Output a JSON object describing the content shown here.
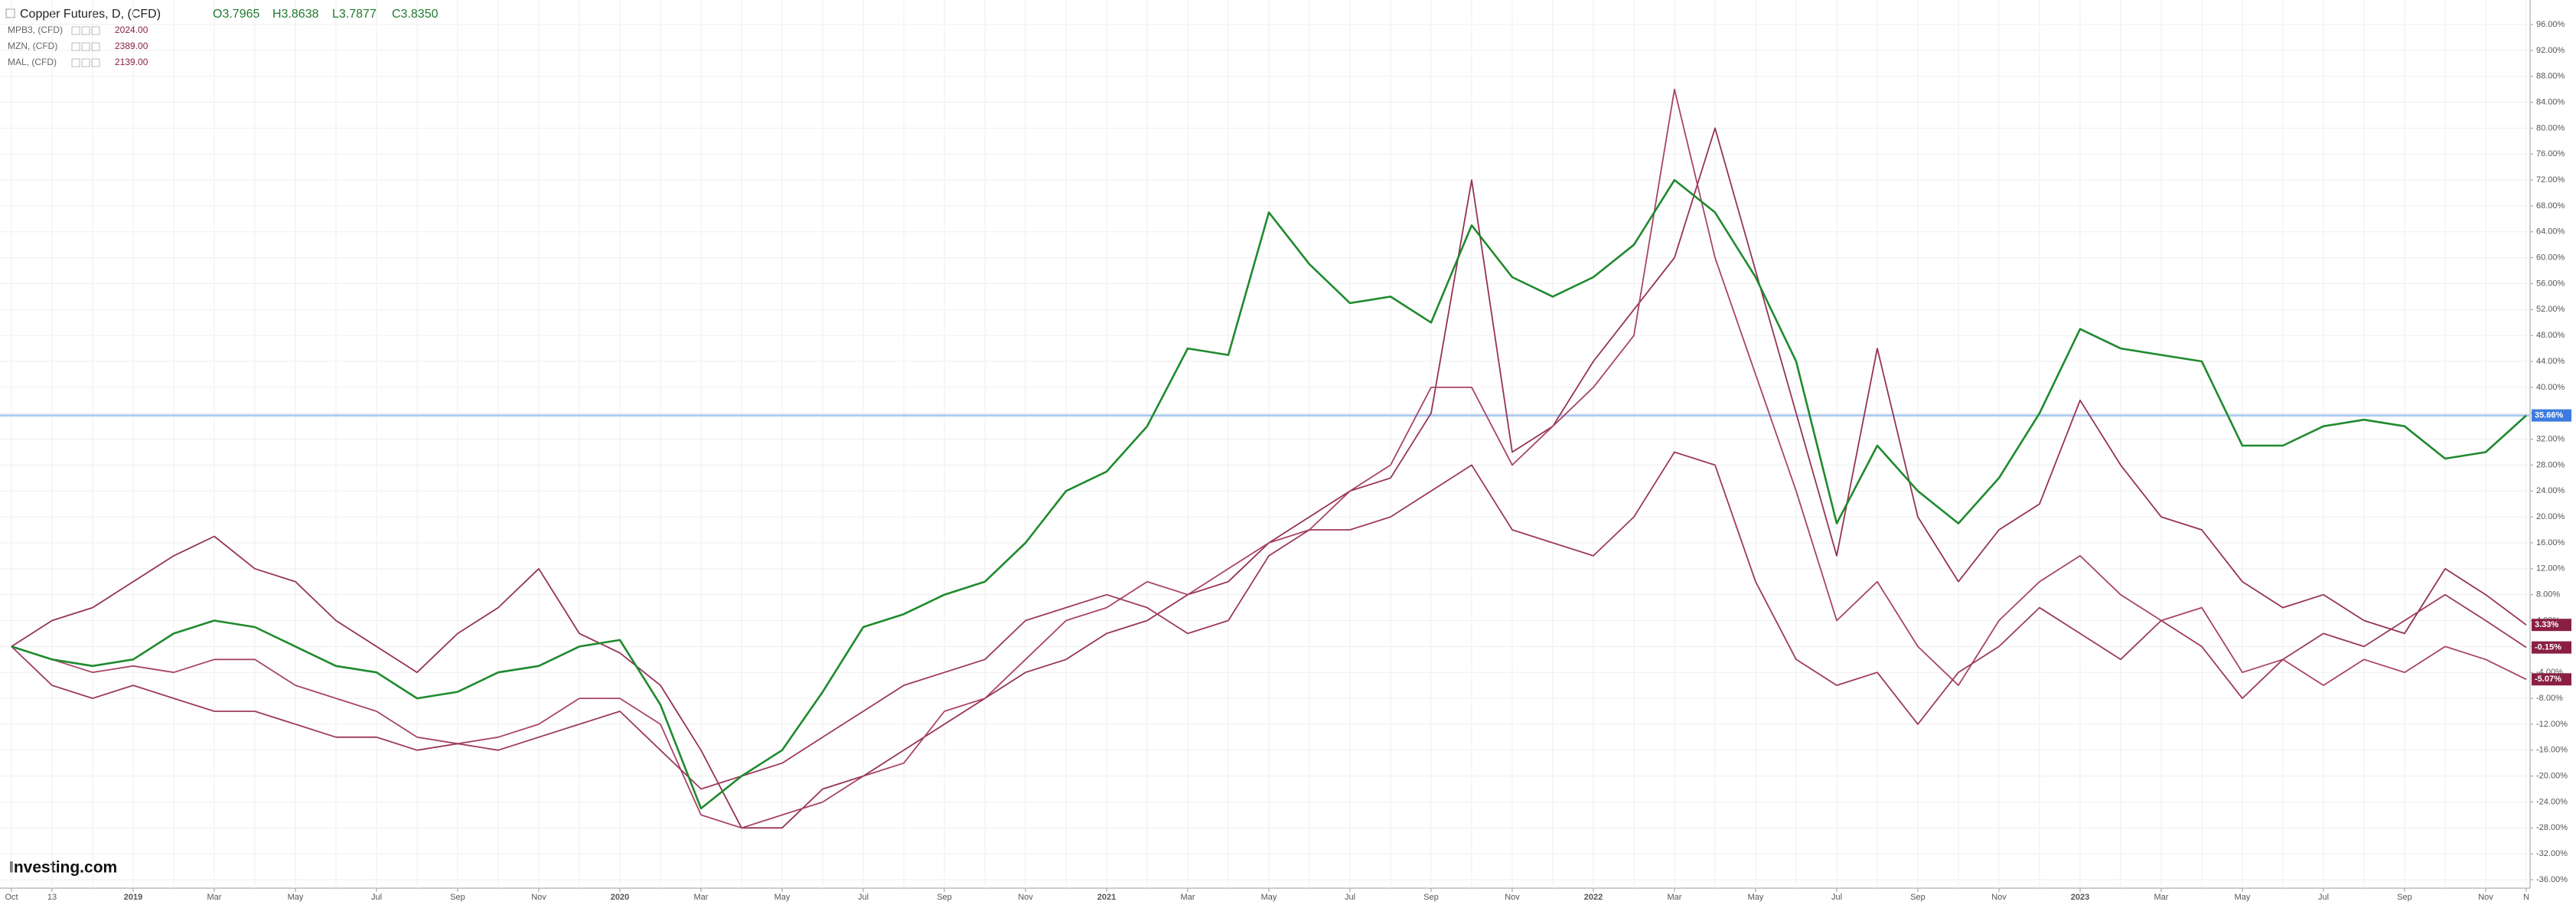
{
  "chart_data": {
    "type": "line",
    "title": "Copper Futures, D, (CFD)",
    "ohlc": [
      "O3.7965",
      "H3.8638",
      "L3.7877",
      "C3.8350"
    ],
    "logo": "Investing.com",
    "categories": [
      "Oct",
      "13",
      null,
      "2019",
      null,
      "Mar",
      null,
      "May",
      null,
      "Jul",
      null,
      "Sep",
      null,
      "Nov",
      null,
      "2020",
      null,
      "Mar",
      null,
      "May",
      null,
      "Jul",
      null,
      "Sep",
      null,
      "Nov",
      null,
      "2021",
      null,
      "Mar",
      null,
      "May",
      null,
      "Jul",
      null,
      "Sep",
      null,
      "Nov",
      null,
      "2022",
      null,
      "Mar",
      null,
      "May",
      null,
      "Jul",
      null,
      "Sep",
      null,
      "Nov",
      null,
      "2023",
      null,
      "Mar",
      null,
      "May",
      null,
      "Jul",
      null,
      "Sep",
      null,
      "Nov",
      "N"
    ],
    "series": [
      {
        "name": "Copper Futures",
        "color": "#1f8a2e",
        "in_legend": false,
        "values": [
          0,
          -2,
          -3,
          -2,
          2,
          4,
          3,
          0,
          -3,
          -4,
          -8,
          -7,
          -4,
          -3,
          0,
          1,
          -9,
          -25,
          -20,
          -16,
          -7,
          3,
          5,
          8,
          10,
          16,
          24,
          27,
          34,
          46,
          45,
          67,
          59,
          53,
          54,
          50,
          65,
          57,
          54,
          57,
          62,
          72,
          67,
          57,
          44,
          19,
          31,
          24,
          19,
          26,
          36,
          49,
          46,
          45,
          44,
          31,
          31,
          34,
          35,
          34,
          29,
          30,
          35.66
        ],
        "value_labels": [
          null,
          null,
          null,
          null,
          null,
          null,
          null,
          null,
          null,
          null,
          null,
          null,
          null,
          null,
          null,
          null,
          null,
          null,
          null,
          null,
          null,
          null,
          null,
          null,
          null,
          null,
          null,
          null,
          null,
          null,
          null,
          null,
          null,
          null,
          null,
          null,
          null,
          null,
          null,
          null,
          null,
          null,
          null,
          null,
          null,
          null,
          null,
          null,
          null,
          null,
          null,
          null,
          null,
          null,
          null,
          null,
          null,
          null,
          null,
          null,
          null,
          null,
          "35.66%"
        ],
        "label_color": "#3d7be0"
      },
      {
        "name": "MPB3, (CFD)",
        "price": "2024.00",
        "color": "#9c3a5e",
        "values": [
          0,
          -6,
          -8,
          -6,
          -8,
          -10,
          -10,
          -12,
          -14,
          -14,
          -16,
          -15,
          -16,
          -14,
          -12,
          -10,
          -16,
          -22,
          -20,
          -18,
          -14,
          -10,
          -6,
          -4,
          -2,
          4,
          6,
          8,
          6,
          2,
          4,
          14,
          18,
          18,
          20,
          24,
          28,
          18,
          16,
          14,
          20,
          30,
          28,
          10,
          -2,
          -6,
          -4,
          -12,
          -4,
          0,
          6,
          2,
          -2,
          4,
          0,
          -8,
          -2,
          2,
          0,
          4,
          8,
          4,
          -0.15
        ],
        "value_labels": [
          null,
          null,
          null,
          null,
          null,
          null,
          null,
          null,
          null,
          null,
          null,
          null,
          null,
          null,
          null,
          null,
          null,
          null,
          null,
          null,
          null,
          null,
          null,
          null,
          null,
          null,
          null,
          null,
          null,
          null,
          null,
          null,
          null,
          null,
          null,
          null,
          null,
          null,
          null,
          null,
          null,
          null,
          null,
          null,
          null,
          null,
          null,
          null,
          null,
          null,
          null,
          null,
          null,
          null,
          null,
          null,
          null,
          null,
          null,
          null,
          null,
          null,
          "-0.15%"
        ],
        "label_color": "#8a1f45"
      },
      {
        "name": "MZN, (CFD)",
        "price": "2389.00",
        "color": "#a84468",
        "values": [
          0,
          -2,
          -4,
          -3,
          -4,
          -2,
          -2,
          -6,
          -8,
          -10,
          -14,
          -15,
          -14,
          -12,
          -8,
          -8,
          -12,
          -26,
          -28,
          -26,
          -24,
          -20,
          -18,
          -10,
          -8,
          -2,
          4,
          6,
          10,
          8,
          12,
          16,
          18,
          24,
          28,
          40,
          40,
          28,
          34,
          40,
          48,
          86,
          60,
          42,
          24,
          4,
          10,
          0,
          -6,
          4,
          10,
          14,
          8,
          4,
          6,
          -4,
          -2,
          -6,
          -2,
          -4,
          0,
          -2,
          -5.07
        ],
        "value_labels": [
          null,
          null,
          null,
          null,
          null,
          null,
          null,
          null,
          null,
          null,
          null,
          null,
          null,
          null,
          null,
          null,
          null,
          null,
          null,
          null,
          null,
          null,
          null,
          null,
          null,
          null,
          null,
          null,
          null,
          null,
          null,
          null,
          null,
          null,
          null,
          null,
          null,
          null,
          null,
          null,
          null,
          null,
          null,
          null,
          null,
          null,
          null,
          null,
          null,
          null,
          null,
          null,
          null,
          null,
          null,
          null,
          null,
          null,
          null,
          null,
          null,
          null,
          "-5.07%"
        ],
        "label_color": "#8a1f45"
      },
      {
        "name": "MAL, (CFD)",
        "price": "2139.00",
        "color": "#953355",
        "values": [
          0,
          4,
          6,
          10,
          14,
          17,
          12,
          10,
          4,
          0,
          -4,
          2,
          6,
          12,
          2,
          -1,
          -6,
          -16,
          -28,
          -28,
          -22,
          -20,
          -16,
          -12,
          -8,
          -4,
          -2,
          2,
          4,
          8,
          10,
          16,
          20,
          24,
          26,
          36,
          72,
          30,
          34,
          44,
          52,
          60,
          80,
          58,
          36,
          14,
          46,
          20,
          10,
          18,
          22,
          38,
          28,
          20,
          18,
          10,
          6,
          8,
          4,
          2,
          12,
          8,
          3.33
        ],
        "value_labels": [
          null,
          null,
          null,
          null,
          null,
          null,
          null,
          null,
          null,
          null,
          null,
          null,
          null,
          null,
          null,
          null,
          null,
          null,
          null,
          null,
          null,
          null,
          null,
          null,
          null,
          null,
          null,
          null,
          null,
          null,
          null,
          null,
          null,
          null,
          null,
          null,
          null,
          null,
          null,
          null,
          null,
          null,
          null,
          null,
          null,
          null,
          null,
          null,
          null,
          null,
          null,
          null,
          null,
          null,
          null,
          null,
          null,
          null,
          null,
          null,
          null,
          null,
          "3.33%"
        ],
        "label_color": "#8a1f45"
      }
    ],
    "ylim": [
      -36,
      96
    ],
    "yticks": [
      {
        "value": 96,
        "label": "96.00%"
      },
      {
        "value": 92,
        "label": "92.00%"
      },
      {
        "value": 88,
        "label": "88.00%"
      },
      {
        "value": 84,
        "label": "84.00%"
      },
      {
        "value": 80,
        "label": "80.00%"
      },
      {
        "value": 76,
        "label": "76.00%"
      },
      {
        "value": 72,
        "label": "72.00%"
      },
      {
        "value": 68,
        "label": "68.00%"
      },
      {
        "value": 64,
        "label": "64.00%"
      },
      {
        "value": 60,
        "label": "60.00%"
      },
      {
        "value": 56,
        "label": "56.00%"
      },
      {
        "value": 52,
        "label": "52.00%"
      },
      {
        "value": 48,
        "label": "48.00%"
      },
      {
        "value": 44,
        "label": "44.00%"
      },
      {
        "value": 40,
        "label": "40.00%"
      },
      {
        "value": 36,
        "label": "36.00%"
      },
      {
        "value": 32,
        "label": "32.00%"
      },
      {
        "value": 28,
        "label": "28.00%"
      },
      {
        "value": 24,
        "label": "24.00%"
      },
      {
        "value": 20,
        "label": "20.00%"
      },
      {
        "value": 16,
        "label": "16.00%"
      },
      {
        "value": 12,
        "label": "12.00%"
      },
      {
        "value": 8,
        "label": "8.00%"
      },
      {
        "value": 4,
        "label": "4.00%"
      },
      {
        "value": 0,
        "label": "0.00%"
      },
      {
        "value": -4,
        "label": "-4.00%"
      },
      {
        "value": -8,
        "label": "-8.00%"
      },
      {
        "value": -12,
        "label": "-12.00%"
      },
      {
        "value": -16,
        "label": "-16.00%"
      },
      {
        "value": -20,
        "label": "-20.00%"
      },
      {
        "value": -24,
        "label": "-24.00%"
      },
      {
        "value": -28,
        "label": "-28.00%"
      },
      {
        "value": -32,
        "label": "-32.00%"
      },
      {
        "value": -36,
        "label": "-36.00%"
      }
    ],
    "grid": true,
    "price_line_color": "#aecbf0"
  }
}
